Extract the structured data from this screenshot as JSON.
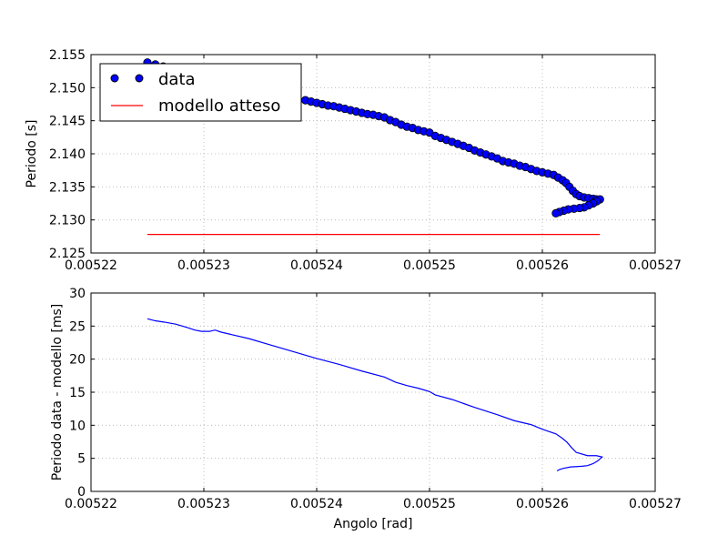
{
  "chart_data": [
    {
      "type": "scatter",
      "xlim": [
        0.00522,
        0.00527
      ],
      "ylim": [
        2.125,
        2.155
      ],
      "x_ticks": [
        "0.00522",
        "0.00523",
        "0.00524",
        "0.00525",
        "0.00526",
        "0.00527"
      ],
      "y_ticks": [
        "2.125",
        "2.130",
        "2.135",
        "2.140",
        "2.145",
        "2.150",
        "2.155"
      ],
      "x_tick_values": [
        0.00522,
        0.00523,
        0.00524,
        0.00525,
        0.00526,
        0.00527
      ],
      "y_tick_values": [
        2.125,
        2.13,
        2.135,
        2.14,
        2.145,
        2.15,
        2.155
      ],
      "xlabel": "",
      "ylabel": "Periodo [s]",
      "grid": true,
      "legend_position": "top-left",
      "legend": [
        "data",
        "modello atteso"
      ],
      "series": [
        {
          "name": "data",
          "kind": "scatter",
          "color": "#0000ff",
          "points": [
            [
              0.005225,
              2.1538
            ],
            [
              0.0052257,
              2.1535
            ],
            [
              0.0052264,
              2.1532
            ],
            [
              0.0052272,
              2.1528
            ],
            [
              0.005228,
              2.1524
            ],
            [
              0.005229,
              2.1518
            ],
            [
              0.00523,
              2.1512
            ],
            [
              0.005231,
              2.1506
            ],
            [
              0.005232,
              2.15
            ],
            [
              0.005233,
              2.1495
            ],
            [
              0.005234,
              2.149
            ],
            [
              0.005235,
              2.1487
            ],
            [
              0.005236,
              2.1485
            ],
            [
              0.005237,
              2.1482
            ],
            [
              0.005238,
              2.1482
            ],
            [
              0.005239,
              2.1481
            ],
            [
              0.0052395,
              2.1479
            ],
            [
              0.00524,
              2.1477
            ],
            [
              0.0052405,
              2.1475
            ],
            [
              0.005241,
              2.1473
            ],
            [
              0.0052415,
              2.1472
            ],
            [
              0.005242,
              2.147
            ],
            [
              0.0052425,
              2.1468
            ],
            [
              0.005243,
              2.1466
            ],
            [
              0.0052435,
              2.1464
            ],
            [
              0.005244,
              2.1462
            ],
            [
              0.0052445,
              2.146
            ],
            [
              0.005245,
              2.1459
            ],
            [
              0.0052455,
              2.1457
            ],
            [
              0.005246,
              2.1455
            ],
            [
              0.0052465,
              2.1451
            ],
            [
              0.005247,
              2.1448
            ],
            [
              0.0052475,
              2.1444
            ],
            [
              0.005248,
              2.1441
            ],
            [
              0.0052485,
              2.1439
            ],
            [
              0.005249,
              2.1436
            ],
            [
              0.0052495,
              2.1434
            ],
            [
              0.00525,
              2.1432
            ],
            [
              0.0052505,
              2.1427
            ],
            [
              0.005251,
              2.1424
            ],
            [
              0.0052515,
              2.1421
            ],
            [
              0.005252,
              2.1418
            ],
            [
              0.0052525,
              2.1415
            ],
            [
              0.005253,
              2.1412
            ],
            [
              0.0052535,
              2.1409
            ],
            [
              0.005254,
              2.1405
            ],
            [
              0.0052545,
              2.1402
            ],
            [
              0.005255,
              2.1399
            ],
            [
              0.0052555,
              2.1396
            ],
            [
              0.005256,
              2.1393
            ],
            [
              0.0052565,
              2.1389
            ],
            [
              0.005257,
              2.1387
            ],
            [
              0.0052575,
              2.1385
            ],
            [
              0.005258,
              2.1382
            ],
            [
              0.0052585,
              2.138
            ],
            [
              0.005259,
              2.1377
            ],
            [
              0.0052595,
              2.1374
            ],
            [
              0.00526,
              2.1372
            ],
            [
              0.0052605,
              2.137
            ],
            [
              0.005261,
              2.1368
            ],
            [
              0.0052614,
              2.1364
            ],
            [
              0.0052618,
              2.136
            ],
            [
              0.0052621,
              2.1356
            ],
            [
              0.0052624,
              2.135
            ],
            [
              0.0052627,
              2.1344
            ],
            [
              0.005263,
              2.1339
            ],
            [
              0.0052633,
              2.1336
            ],
            [
              0.0052637,
              2.1334
            ],
            [
              0.0052641,
              2.1333
            ],
            [
              0.0052645,
              2.1332
            ],
            [
              0.0052648,
              2.1331
            ],
            [
              0.0052651,
              2.1331
            ],
            [
              0.0052648,
              2.1328
            ],
            [
              0.0052645,
              2.1325
            ],
            [
              0.0052641,
              2.1322
            ],
            [
              0.0052637,
              2.1319
            ],
            [
              0.0052633,
              2.1318
            ],
            [
              0.0052628,
              2.1317
            ],
            [
              0.0052623,
              2.1316
            ],
            [
              0.0052619,
              2.1314
            ],
            [
              0.0052615,
              2.1312
            ],
            [
              0.0052612,
              2.131
            ]
          ]
        },
        {
          "name": "modello atteso",
          "kind": "line",
          "color": "#ff0000",
          "points": [
            [
              0.005225,
              2.1278
            ],
            [
              0.0052651,
              2.1278
            ]
          ]
        }
      ]
    },
    {
      "type": "line",
      "xlim": [
        0.00522,
        0.00527
      ],
      "ylim": [
        0,
        30
      ],
      "x_ticks": [
        "0.00522",
        "0.00523",
        "0.00524",
        "0.00525",
        "0.00526",
        "0.00527"
      ],
      "y_ticks": [
        "0",
        "5",
        "10",
        "15",
        "20",
        "25",
        "30"
      ],
      "x_tick_values": [
        0.00522,
        0.00523,
        0.00524,
        0.00525,
        0.00526,
        0.00527
      ],
      "y_tick_values": [
        0,
        5,
        10,
        15,
        20,
        25,
        30
      ],
      "xlabel": "Angolo [rad]",
      "ylabel": "Periodo data - modello [ms]",
      "grid": true,
      "series": [
        {
          "color": "#0000ff",
          "points": [
            [
              0.005225,
              26.1
            ],
            [
              0.0052257,
              25.8
            ],
            [
              0.0052265,
              25.6
            ],
            [
              0.0052275,
              25.3
            ],
            [
              0.0052285,
              24.8
            ],
            [
              0.0052292,
              24.4
            ],
            [
              0.0052298,
              24.2
            ],
            [
              0.0052305,
              24.2
            ],
            [
              0.005231,
              24.4
            ],
            [
              0.0052315,
              24.1
            ],
            [
              0.0052325,
              23.7
            ],
            [
              0.005234,
              23.1
            ],
            [
              0.005236,
              22.1
            ],
            [
              0.005238,
              21.1
            ],
            [
              0.00524,
              20.1
            ],
            [
              0.005242,
              19.2
            ],
            [
              0.005244,
              18.2
            ],
            [
              0.005246,
              17.3
            ],
            [
              0.005247,
              16.5
            ],
            [
              0.005248,
              16.0
            ],
            [
              0.005249,
              15.6
            ],
            [
              0.00525,
              15.1
            ],
            [
              0.0052505,
              14.6
            ],
            [
              0.005252,
              13.9
            ],
            [
              0.005254,
              12.7
            ],
            [
              0.005256,
              11.6
            ],
            [
              0.0052575,
              10.7
            ],
            [
              0.005259,
              10.1
            ],
            [
              0.00526,
              9.4
            ],
            [
              0.0052612,
              8.7
            ],
            [
              0.0052618,
              8.0
            ],
            [
              0.0052622,
              7.4
            ],
            [
              0.0052626,
              6.6
            ],
            [
              0.005263,
              5.9
            ],
            [
              0.005264,
              5.4
            ],
            [
              0.0052648,
              5.4
            ],
            [
              0.0052653,
              5.2
            ],
            [
              0.0052649,
              4.6
            ],
            [
              0.0052645,
              4.2
            ],
            [
              0.005264,
              3.9
            ],
            [
              0.0052635,
              3.8
            ],
            [
              0.0052625,
              3.7
            ],
            [
              0.0052619,
              3.5
            ],
            [
              0.0052615,
              3.3
            ],
            [
              0.0052613,
              3.1
            ]
          ]
        }
      ]
    }
  ]
}
